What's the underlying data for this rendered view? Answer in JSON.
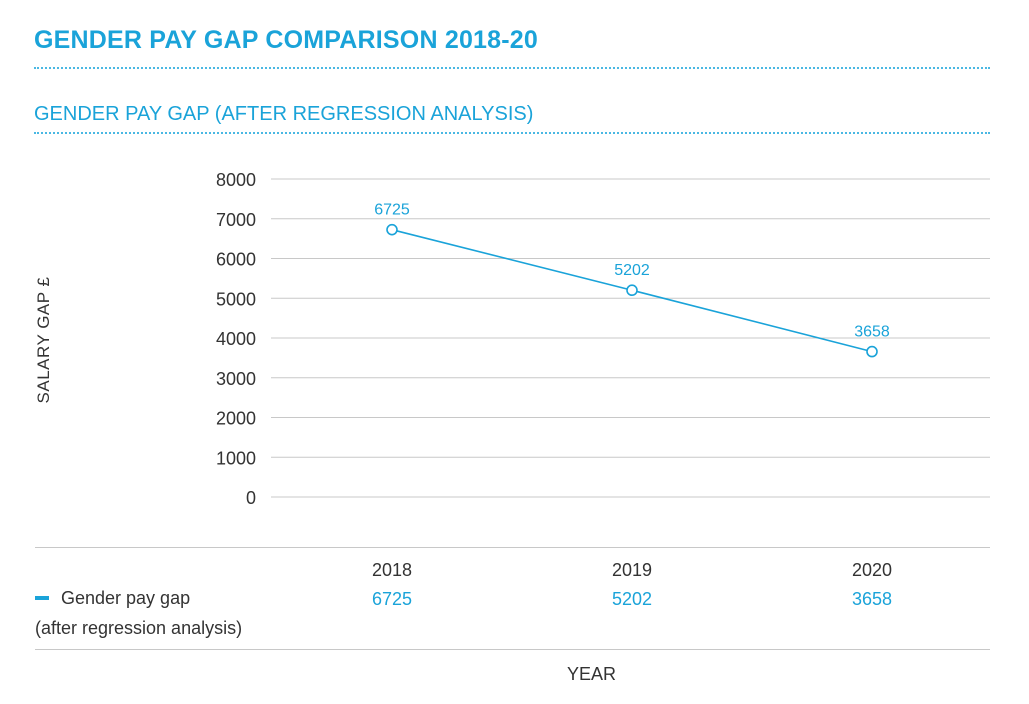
{
  "header": {
    "title": "GENDER PAY GAP COMPARISON 2018-20",
    "subtitle": "GENDER PAY GAP (AFTER REGRESSION ANALYSIS)"
  },
  "colors": {
    "accent": "#1aa3d9",
    "text": "#333333",
    "grid": "#c8c8c8"
  },
  "chart_data": {
    "type": "line",
    "title": "GENDER PAY GAP (AFTER REGRESSION ANALYSIS)",
    "xlabel": "YEAR",
    "ylabel": "SALARY GAP £",
    "x": [
      "2018",
      "2019",
      "2020"
    ],
    "ylim": [
      0,
      8000
    ],
    "yticks": [
      0,
      1000,
      2000,
      3000,
      4000,
      5000,
      6000,
      7000,
      8000
    ],
    "grid": true,
    "legend_placement": "bottom-left",
    "series": [
      {
        "name": "Gender pay gap",
        "name_line2": "(after regression analysis)",
        "values": [
          6725,
          5202,
          3658
        ],
        "point_labels": [
          "6725",
          "5202",
          "3658"
        ]
      }
    ]
  }
}
